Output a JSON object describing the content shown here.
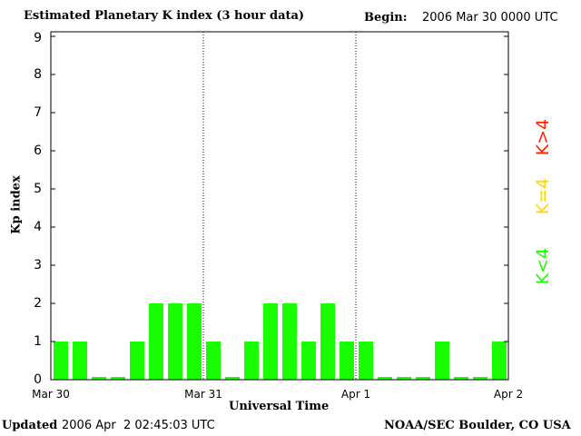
{
  "chart_data": {
    "type": "bar",
    "title": "Estimated Planetary K index (3 hour data)",
    "begin_label": "Begin:",
    "begin_value": "2006 Mar 30 0000 UTC",
    "xlabel": "Universal Time",
    "ylabel": "Kp index",
    "ylim": [
      0,
      9
    ],
    "yticks": [
      "0",
      "1",
      "2",
      "3",
      "4",
      "5",
      "6",
      "7",
      "8",
      "9"
    ],
    "xticks": [
      "Mar 30",
      "Mar 31",
      "Apr 1",
      "Apr 2"
    ],
    "values": [
      1,
      1,
      0,
      0,
      1,
      2,
      2,
      2,
      1,
      0,
      1,
      2,
      2,
      1,
      2,
      1,
      1,
      0,
      0,
      0,
      1,
      0,
      0,
      1
    ],
    "bar_color": "#1aff00",
    "legend": [
      {
        "label": "K>4",
        "color": "#ff2200"
      },
      {
        "label": "K=4",
        "color": "#ffd800"
      },
      {
        "label": "K<4",
        "color": "#1aff00"
      }
    ]
  },
  "footer": {
    "updated_label": "Updated",
    "updated_value": "2006 Apr  2 02:45:03 UTC",
    "source": "NOAA/SEC Boulder, CO USA"
  }
}
